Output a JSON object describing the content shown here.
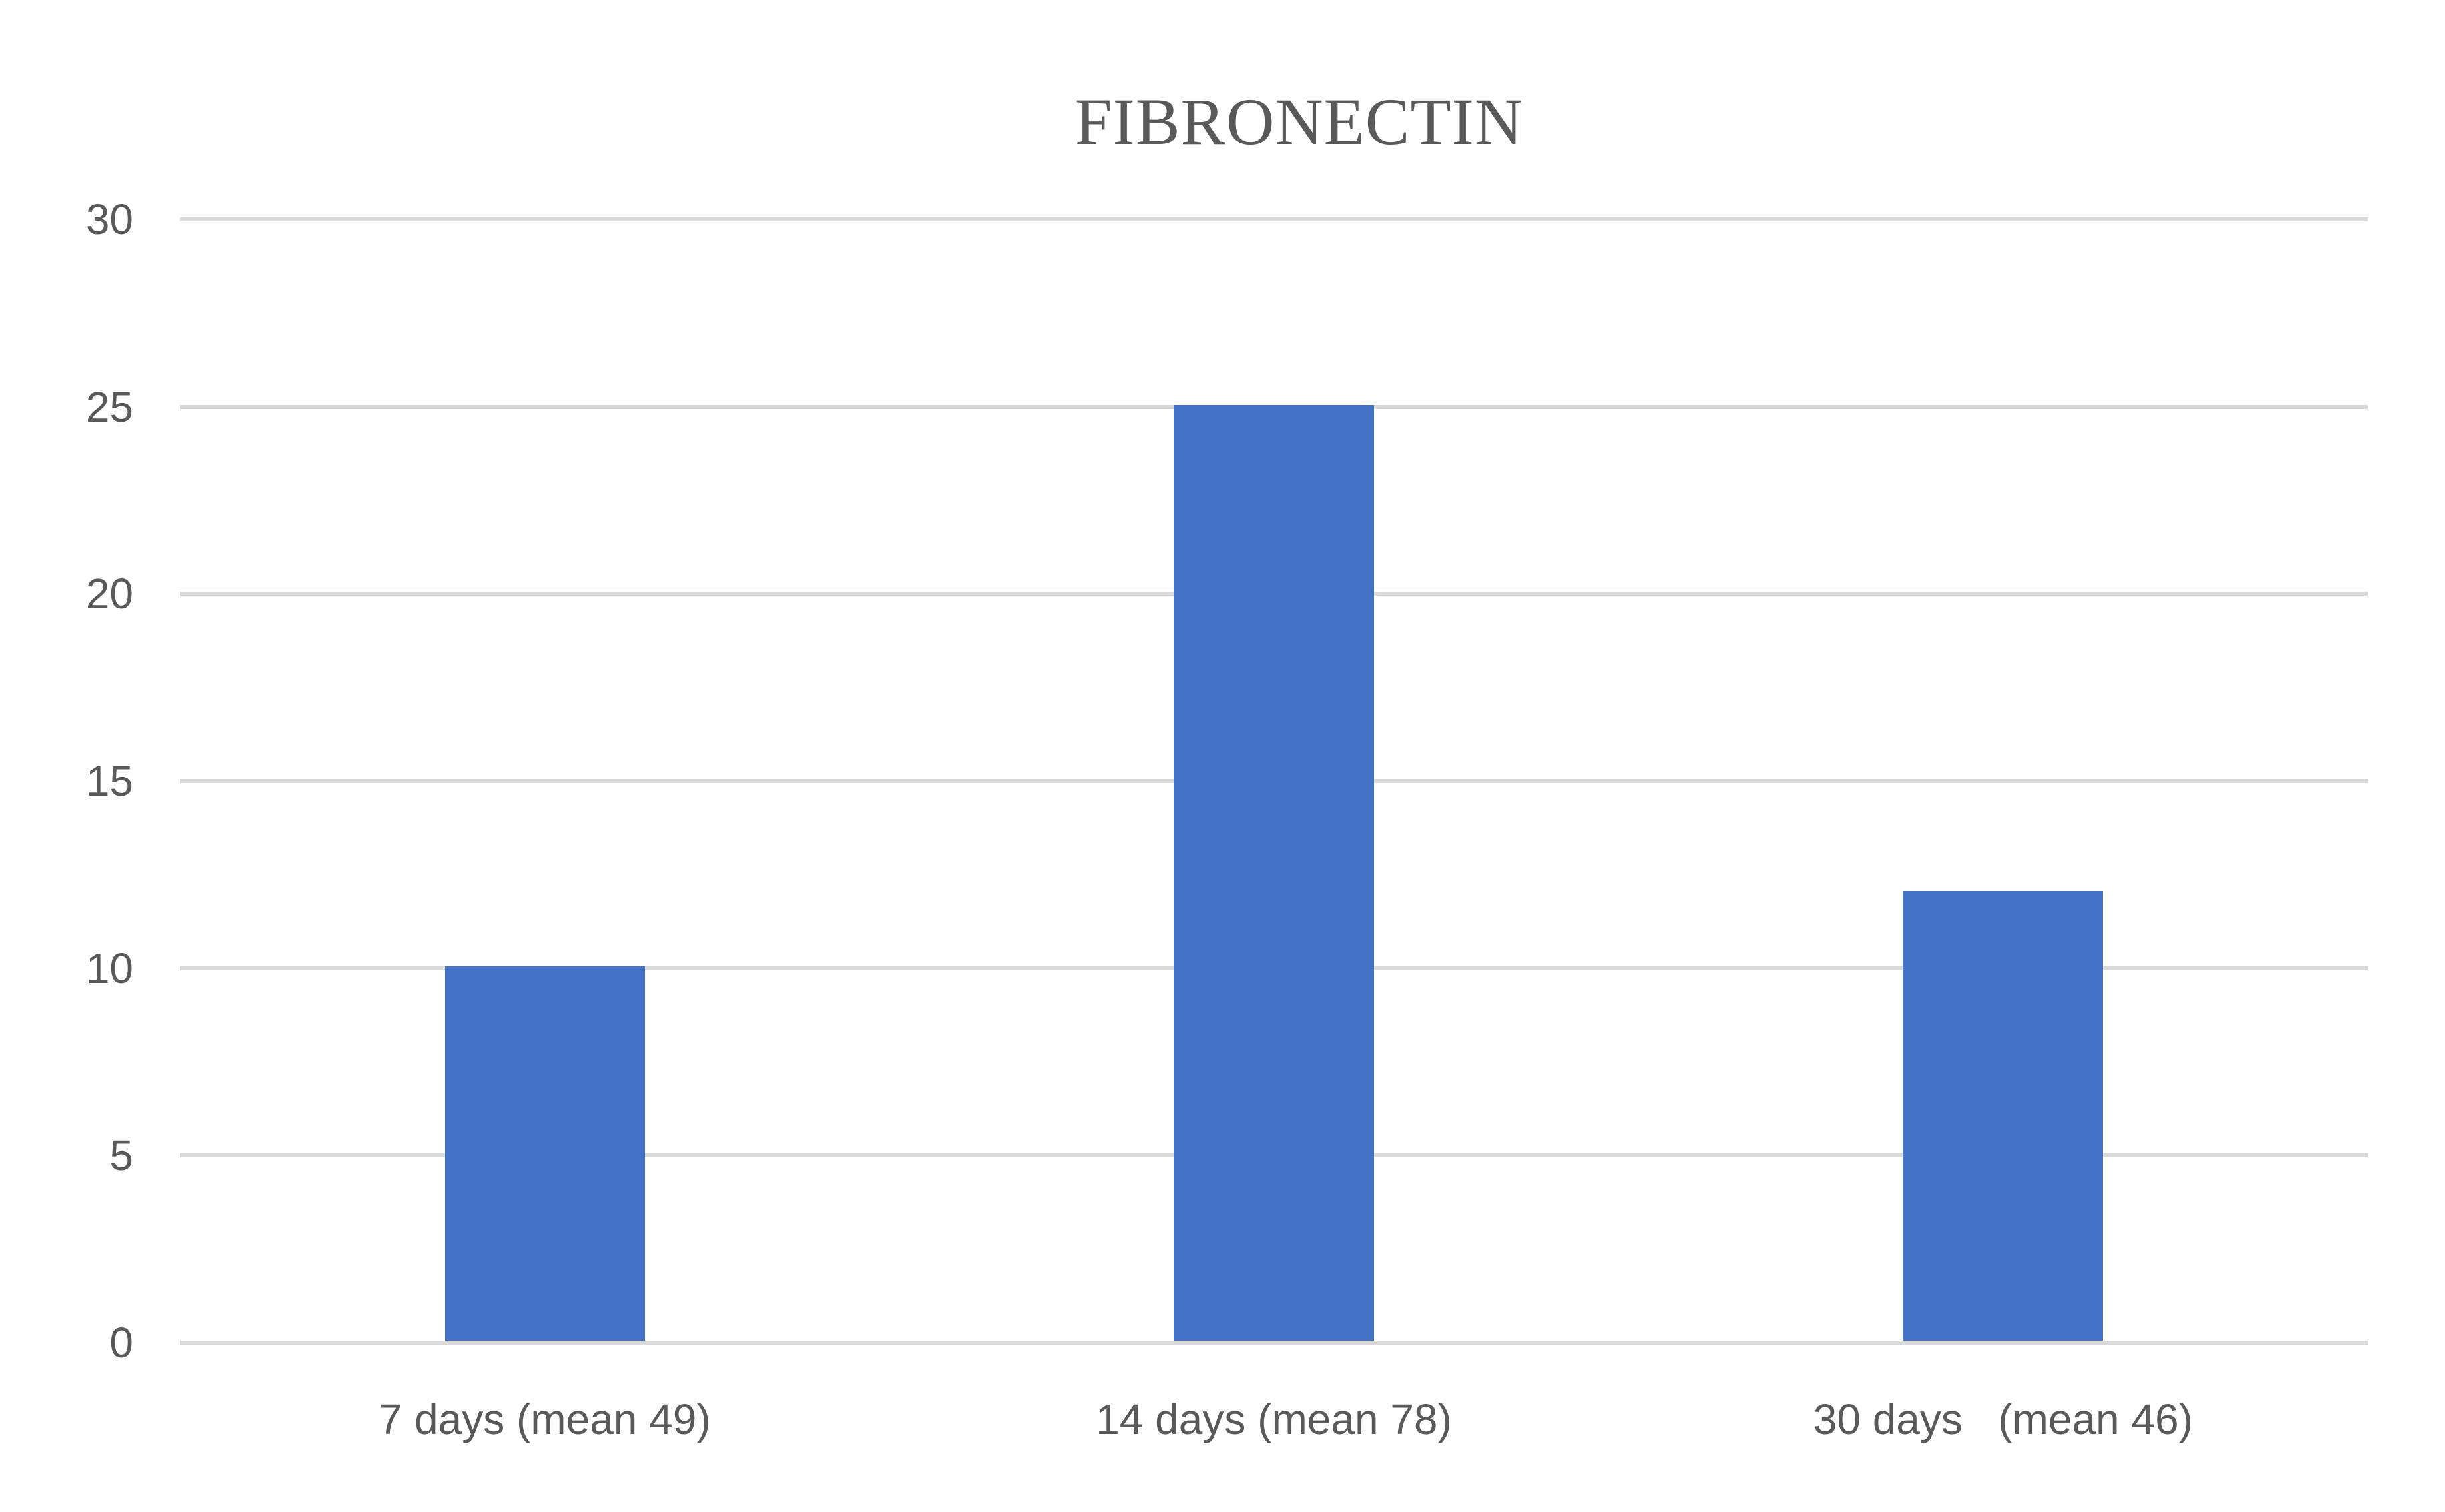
{
  "chart_data": {
    "type": "bar",
    "title": "FIBRONECTIN",
    "categories": [
      "7 days (mean 49)",
      "14 days (mean 78)",
      "30 days   (mean 46)"
    ],
    "values": [
      10,
      25,
      12
    ],
    "series": [
      {
        "name": "FIBRONECTIN",
        "values": [
          10,
          25,
          12
        ]
      }
    ],
    "xlabel": "",
    "ylabel": "",
    "ylim": [
      0,
      30
    ],
    "yticks": [
      0,
      5,
      10,
      15,
      20,
      25,
      30
    ],
    "grid": true,
    "legend": false,
    "legend_position": "none",
    "colors": {
      "bar": "#4472C4",
      "gridline": "#D9D9D9",
      "text": "#595959",
      "background": "#FFFFFF"
    }
  }
}
